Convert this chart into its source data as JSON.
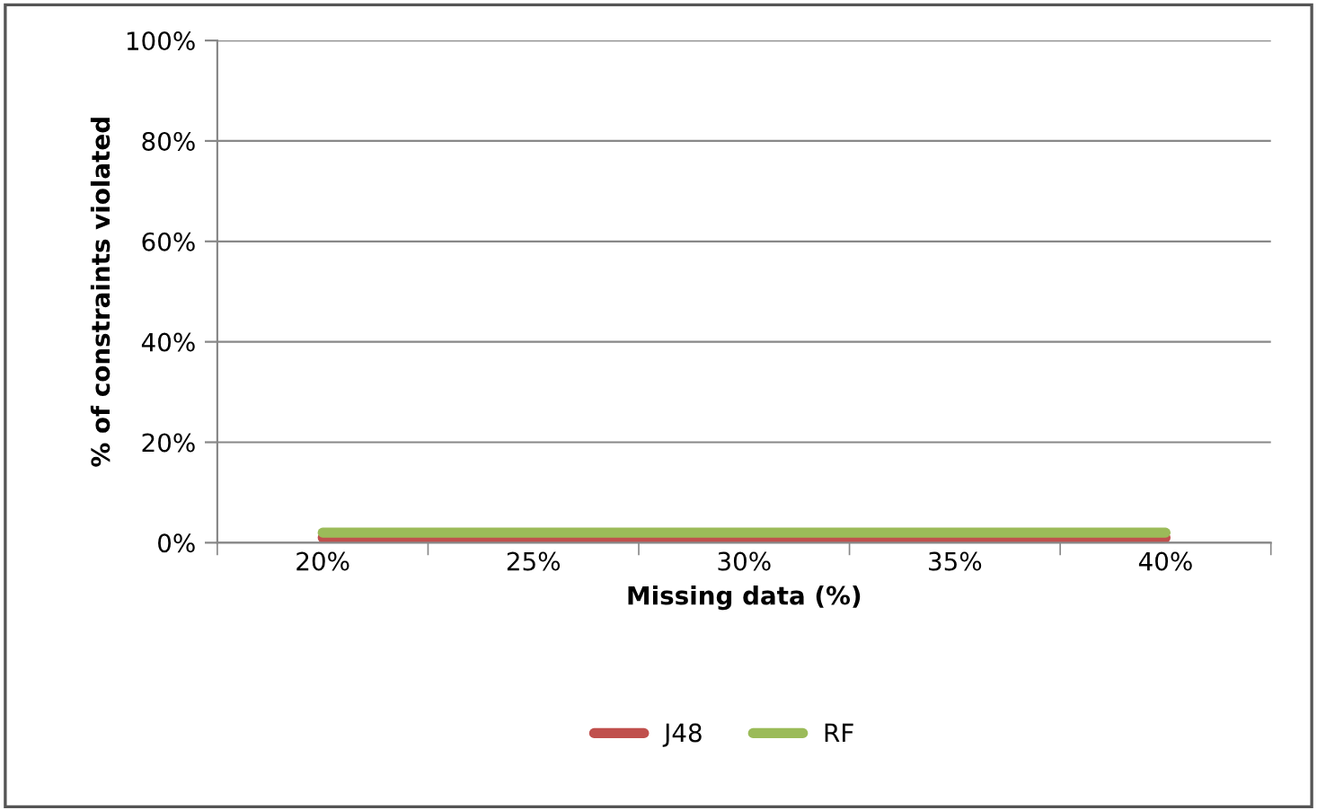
{
  "chart_data": {
    "type": "line",
    "xlabel": "Missing data (%)",
    "ylabel": "% of constraints violated",
    "categories": [
      "20%",
      "25%",
      "30%",
      "35%",
      "40%"
    ],
    "series": [
      {
        "name": "J48",
        "color": "#c0504d",
        "values": [
          1,
          1,
          1,
          1,
          1
        ]
      },
      {
        "name": "RF",
        "color": "#9bbb59",
        "values": [
          2,
          2,
          2,
          2,
          2
        ]
      }
    ],
    "ylim": [
      0,
      100
    ],
    "yticks": [
      {
        "value": 0,
        "label": "0%"
      },
      {
        "value": 20,
        "label": "20%"
      },
      {
        "value": 40,
        "label": "40%"
      },
      {
        "value": 60,
        "label": "60%"
      },
      {
        "value": 80,
        "label": "80%"
      },
      {
        "value": 100,
        "label": "100%"
      }
    ],
    "grid": "y",
    "legend": "bottom",
    "marker": "none",
    "line_style": "solid"
  }
}
